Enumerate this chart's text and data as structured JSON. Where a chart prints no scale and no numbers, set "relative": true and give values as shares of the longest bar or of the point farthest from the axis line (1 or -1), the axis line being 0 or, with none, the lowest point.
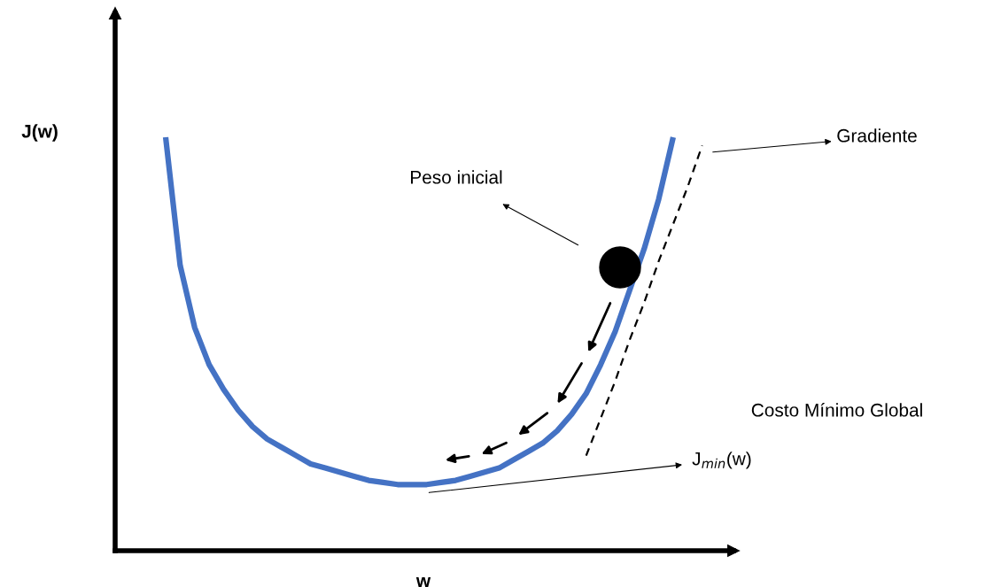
{
  "chart_data": {
    "type": "line",
    "relative": true,
    "xlabel": "w",
    "categories": [
      null,
      null,
      null,
      null,
      null,
      null,
      null,
      null,
      null,
      null,
      null,
      null,
      null,
      null,
      null,
      null,
      null,
      null,
      null,
      null,
      null,
      null,
      null,
      null,
      null,
      null,
      null,
      null,
      null,
      null,
      null,
      null,
      null,
      null,
      null,
      null,
      null,
      null
    ],
    "series": [
      {
        "color": "#4472c4",
        "values": [
          1.0,
          0.69,
          0.54,
          0.45,
          0.39,
          0.34,
          0.3,
          0.27,
          0.25,
          0.23,
          0.21,
          0.2,
          0.19,
          0.18,
          0.17,
          0.165,
          0.16,
          0.16,
          0.16,
          0.165,
          0.17,
          0.18,
          0.19,
          0.2,
          0.22,
          0.24,
          0.26,
          0.29,
          0.33,
          0.38,
          0.45,
          0.53,
          0.63,
          0.73,
          0.85,
          1.0,
          null,
          null
        ]
      },
      {
        "color": "#000000",
        "line_style": "dashed",
        "values": [
          null,
          null,
          null,
          null,
          null,
          null,
          null,
          null,
          null,
          null,
          null,
          null,
          null,
          null,
          null,
          null,
          null,
          null,
          null,
          null,
          null,
          null,
          null,
          null,
          null,
          null,
          null,
          null,
          null,
          0.23,
          0.32,
          0.41,
          0.51,
          0.6,
          0.7,
          0.79,
          0.88,
          0.98
        ]
      }
    ],
    "annotations": [
      "J(w)",
      "Peso inicial",
      "Gradiente",
      "Costo Mínimo Global",
      "J$_{min}$(w)"
    ]
  }
}
